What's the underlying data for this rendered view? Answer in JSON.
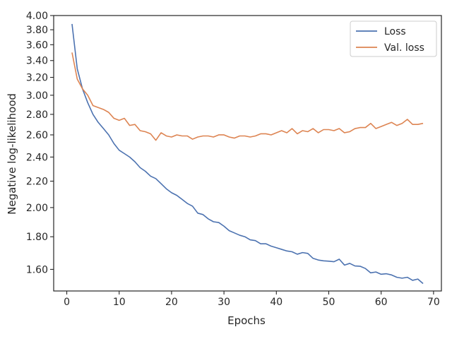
{
  "chart_data": {
    "type": "line",
    "title": "",
    "xlabel": "Epochs",
    "ylabel": "Negative log-likelihood",
    "xlim": [
      -2.5,
      71.5
    ],
    "ylim": [
      1.48,
      4.0
    ],
    "yscale": "log",
    "grid": false,
    "legend_position": "top-right",
    "x_ticks": [
      0,
      10,
      20,
      30,
      40,
      50,
      60,
      70
    ],
    "x_tick_labels": [
      "0",
      "10",
      "20",
      "30",
      "40",
      "50",
      "60",
      "70"
    ],
    "y_ticks": [
      1.6,
      1.8,
      2.0,
      2.2,
      2.4,
      2.6,
      2.8,
      3.0,
      3.2,
      3.4,
      3.6,
      3.8,
      4.0
    ],
    "y_tick_labels": [
      "1.60",
      "1.80",
      "2.00",
      "2.20",
      "2.40",
      "2.60",
      "2.80",
      "3.00",
      "3.20",
      "3.40",
      "3.60",
      "3.80",
      "4.00"
    ],
    "series": [
      {
        "name": "Loss",
        "color": "#4c72b0",
        "x": [
          1,
          2,
          3,
          4,
          5,
          6,
          7,
          8,
          9,
          10,
          11,
          12,
          13,
          14,
          15,
          16,
          17,
          18,
          19,
          20,
          21,
          22,
          23,
          24,
          25,
          26,
          27,
          28,
          29,
          30,
          31,
          32,
          33,
          34,
          35,
          36,
          37,
          38,
          39,
          40,
          41,
          42,
          43,
          44,
          45,
          46,
          47,
          48,
          49,
          50,
          51,
          52,
          53,
          54,
          55,
          56,
          57,
          58,
          59,
          60,
          61,
          62,
          63,
          64,
          65,
          66,
          67,
          68
        ],
        "values": [
          3.88,
          3.3,
          3.07,
          2.92,
          2.8,
          2.72,
          2.66,
          2.6,
          2.52,
          2.46,
          2.43,
          2.4,
          2.36,
          2.31,
          2.28,
          2.24,
          2.22,
          2.18,
          2.14,
          2.11,
          2.09,
          2.06,
          2.03,
          2.01,
          1.96,
          1.95,
          1.92,
          1.9,
          1.895,
          1.87,
          1.84,
          1.825,
          1.81,
          1.8,
          1.78,
          1.775,
          1.755,
          1.755,
          1.74,
          1.73,
          1.72,
          1.71,
          1.705,
          1.69,
          1.7,
          1.695,
          1.665,
          1.655,
          1.65,
          1.648,
          1.645,
          1.66,
          1.625,
          1.635,
          1.62,
          1.618,
          1.605,
          1.58,
          1.585,
          1.572,
          1.575,
          1.568,
          1.555,
          1.55,
          1.555,
          1.538,
          1.545,
          1.52
        ]
      },
      {
        "name": "Val. loss",
        "color": "#dd8452",
        "x": [
          1,
          2,
          3,
          4,
          5,
          6,
          7,
          8,
          9,
          10,
          11,
          12,
          13,
          14,
          15,
          16,
          17,
          18,
          19,
          20,
          21,
          22,
          23,
          24,
          25,
          26,
          27,
          28,
          29,
          30,
          31,
          32,
          33,
          34,
          35,
          36,
          37,
          38,
          39,
          40,
          41,
          42,
          43,
          44,
          45,
          46,
          47,
          48,
          49,
          50,
          51,
          52,
          53,
          54,
          55,
          56,
          57,
          58,
          59,
          60,
          61,
          62,
          63,
          64,
          65,
          66,
          67,
          68
        ],
        "values": [
          3.5,
          3.18,
          3.07,
          3.0,
          2.89,
          2.87,
          2.85,
          2.82,
          2.76,
          2.74,
          2.76,
          2.69,
          2.7,
          2.64,
          2.63,
          2.61,
          2.55,
          2.62,
          2.59,
          2.58,
          2.6,
          2.59,
          2.59,
          2.56,
          2.58,
          2.59,
          2.59,
          2.58,
          2.6,
          2.6,
          2.58,
          2.57,
          2.59,
          2.59,
          2.58,
          2.59,
          2.61,
          2.61,
          2.6,
          2.62,
          2.64,
          2.62,
          2.66,
          2.61,
          2.64,
          2.63,
          2.66,
          2.62,
          2.65,
          2.65,
          2.64,
          2.66,
          2.62,
          2.63,
          2.66,
          2.67,
          2.67,
          2.71,
          2.66,
          2.68,
          2.7,
          2.72,
          2.69,
          2.71,
          2.75,
          2.7,
          2.7,
          2.71
        ]
      }
    ]
  }
}
